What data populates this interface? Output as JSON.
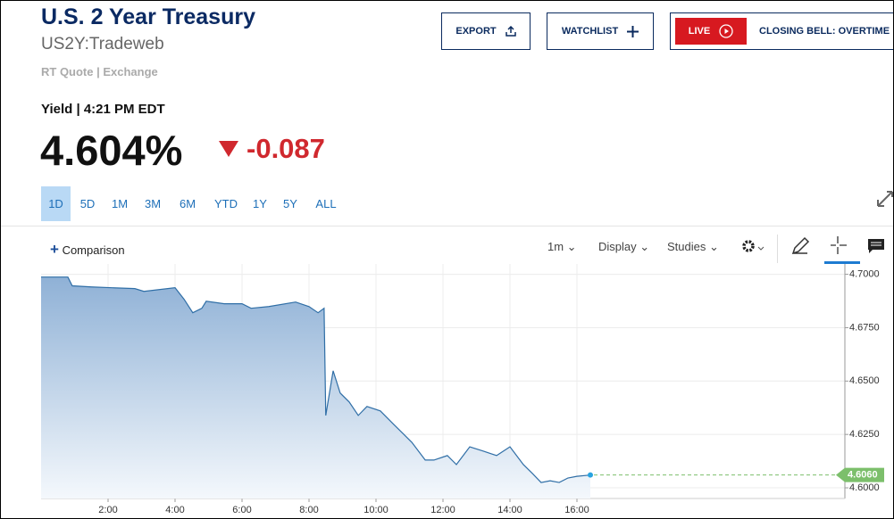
{
  "header": {
    "title": "U.S. 2 Year Treasury",
    "symbol": "US2Y:Tradeweb",
    "source": "RT Quote | Exchange",
    "buttons": [
      "EXPORT",
      "WATCHLIST"
    ],
    "live": "LIVE",
    "live_show": "CLOSING BELL: OVERTIME"
  },
  "quote": {
    "label": "Yield | 4:21 PM EDT",
    "price": "4.604%",
    "change": "-0.087"
  },
  "ranges": [
    "1D",
    "5D",
    "1M",
    "3M",
    "6M",
    "YTD",
    "1Y",
    "5Y",
    "ALL"
  ],
  "selected_range": 0,
  "toolbar": {
    "comparison": "Comparison",
    "interval": "1m",
    "display": "Display",
    "studies": "Studies"
  },
  "chart_data": {
    "type": "area",
    "color": "#2f6ea6",
    "grid": true,
    "x": [
      0,
      0.8,
      0.93,
      1.5,
      2.13,
      2.8,
      3.07,
      4.0,
      4.27,
      4.53,
      4.8,
      4.93,
      5.47,
      6.0,
      6.27,
      6.8,
      7.6,
      8.0,
      8.27,
      8.45,
      8.5,
      8.72,
      8.93,
      9.2,
      9.47,
      9.73,
      10.13,
      10.53,
      10.8,
      11.07,
      11.47,
      11.73,
      12.13,
      12.4,
      12.8,
      13.2,
      13.6,
      14.0,
      14.4,
      14.67,
      14.93,
      15.2,
      15.47,
      15.73,
      16.0,
      16.4
    ],
    "values": [
      4.6987,
      4.6987,
      4.6946,
      4.6941,
      4.6937,
      4.6933,
      4.692,
      4.6937,
      4.6883,
      4.682,
      4.6841,
      4.6874,
      4.6862,
      4.6862,
      4.6841,
      4.6849,
      4.687,
      4.6849,
      4.682,
      4.6841,
      4.6339,
      4.6548,
      4.6444,
      4.6402,
      4.6339,
      4.6381,
      4.636,
      4.6297,
      4.6255,
      4.6213,
      4.613,
      4.613,
      4.6151,
      4.6109,
      4.6192,
      4.6172,
      4.6151,
      4.6192,
      4.6109,
      4.6067,
      4.6025,
      4.6033,
      4.6025,
      4.6046,
      4.6054,
      4.606
    ],
    "xlim": [
      0,
      24
    ],
    "xticks": [
      {
        "value": 2,
        "label": "2:00"
      },
      {
        "value": 4,
        "label": "4:00"
      },
      {
        "value": 6,
        "label": "6:00"
      },
      {
        "value": 8,
        "label": "8:00"
      },
      {
        "value": 10,
        "label": "10:00"
      },
      {
        "value": 12,
        "label": "12:00"
      },
      {
        "value": 14,
        "label": "14:00"
      },
      {
        "value": 16,
        "label": "16:00"
      }
    ],
    "ylim": [
      4.595,
      4.7015
    ],
    "yticks": [
      {
        "value": 4.6,
        "label": "4.6000"
      },
      {
        "value": 4.625,
        "label": "4.6250"
      },
      {
        "value": 4.65,
        "label": "4.6500"
      },
      {
        "value": 4.675,
        "label": "4.6750"
      },
      {
        "value": 4.7,
        "label": "4.7000"
      }
    ],
    "last_value": {
      "value": 4.606,
      "label": "4.6060",
      "color": "#7cbf6b"
    }
  }
}
